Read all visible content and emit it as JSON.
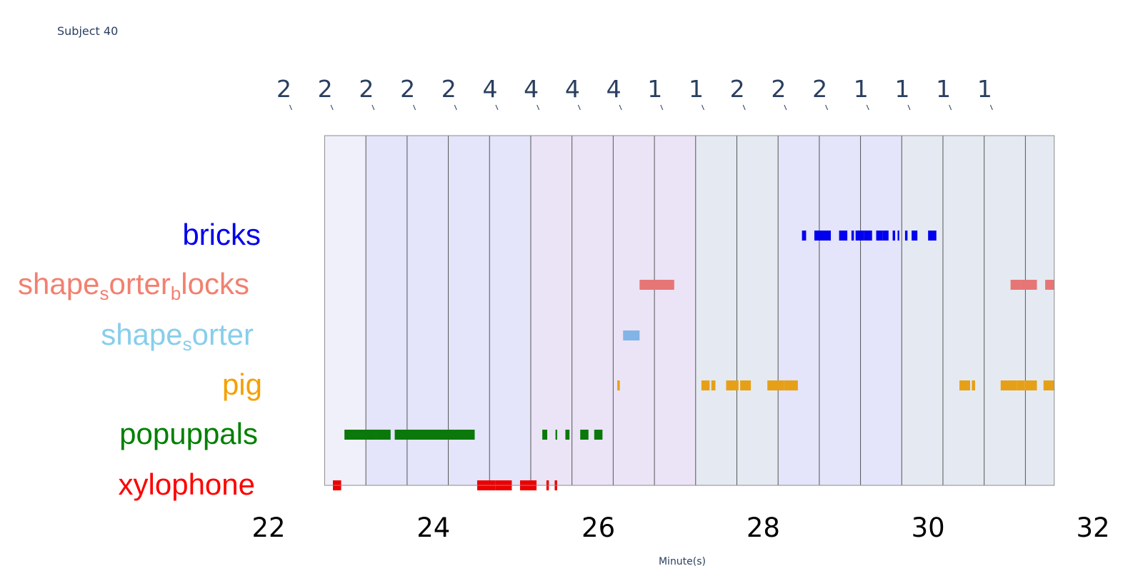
{
  "title": "Subject 40",
  "chart_data": {
    "type": "timeline",
    "title": "Subject 40",
    "xlabel": "Minute(s)",
    "xlim": [
      22,
      32
    ],
    "x_ticks": [
      "22",
      "24",
      "26",
      "28",
      "30",
      "32"
    ],
    "grid": false,
    "categories": [
      {
        "name": "bricks",
        "parts": [
          {
            "t": "bricks"
          }
        ],
        "color": "#0000ee"
      },
      {
        "name": "shape_sorter_blocks",
        "parts": [
          {
            "t": "shape"
          },
          {
            "t": "s",
            "sub": true
          },
          {
            "t": "orter"
          },
          {
            "t": "b",
            "sub": true
          },
          {
            "t": "locks"
          }
        ],
        "color": "#f28070"
      },
      {
        "name": "shape_sorter",
        "parts": [
          {
            "t": "shape"
          },
          {
            "t": "s",
            "sub": true
          },
          {
            "t": "orter"
          }
        ],
        "color": "#87ceeb"
      },
      {
        "name": "pig",
        "parts": [
          {
            "t": "pig"
          }
        ],
        "color": "#f5a000"
      },
      {
        "name": "popuppals",
        "parts": [
          {
            "t": "popuppals"
          }
        ],
        "color": "#008000"
      },
      {
        "name": "xylophone",
        "parts": [
          {
            "t": "xylophone"
          }
        ],
        "color": "#ff0000"
      }
    ],
    "bands": [
      {
        "start": 22.68,
        "end": 23.18,
        "label": "2",
        "color": "#f0f0fb"
      },
      {
        "start": 23.18,
        "end": 23.68,
        "label": "2",
        "color": "#e4e4fa"
      },
      {
        "start": 23.68,
        "end": 24.18,
        "label": "2",
        "color": "#e4e4fa"
      },
      {
        "start": 24.18,
        "end": 24.68,
        "label": "2",
        "color": "#e4e4fa"
      },
      {
        "start": 24.68,
        "end": 25.18,
        "label": "2",
        "color": "#e4e4fa"
      },
      {
        "start": 25.18,
        "end": 25.68,
        "label": "4",
        "color": "#ebe4f6"
      },
      {
        "start": 25.68,
        "end": 26.18,
        "label": "4",
        "color": "#ebe4f6"
      },
      {
        "start": 26.18,
        "end": 26.68,
        "label": "4",
        "color": "#ebe4f6"
      },
      {
        "start": 26.68,
        "end": 27.18,
        "label": "4",
        "color": "#ebe4f6"
      },
      {
        "start": 27.18,
        "end": 27.68,
        "label": "1",
        "color": "#e5eaf2"
      },
      {
        "start": 27.68,
        "end": 28.18,
        "label": "1",
        "color": "#e5eaf2"
      },
      {
        "start": 28.18,
        "end": 28.68,
        "label": "2",
        "color": "#e4e4fa"
      },
      {
        "start": 28.68,
        "end": 29.18,
        "label": "2",
        "color": "#e4e4fa"
      },
      {
        "start": 29.18,
        "end": 29.68,
        "label": "2",
        "color": "#e4e4fa"
      },
      {
        "start": 29.68,
        "end": 30.18,
        "label": "1",
        "color": "#e5eaf2"
      },
      {
        "start": 30.18,
        "end": 30.68,
        "label": "1",
        "color": "#e5eaf2"
      },
      {
        "start": 30.68,
        "end": 31.18,
        "label": "1",
        "color": "#e5eaf2"
      },
      {
        "start": 31.18,
        "end": 31.53,
        "label": "1",
        "color": "#e5eaf2"
      }
    ],
    "events": [
      {
        "cat": "bricks",
        "color": "#0000ee",
        "segments": [
          [
            28.47,
            28.52
          ],
          [
            28.62,
            28.72
          ],
          [
            28.72,
            28.82
          ],
          [
            28.92,
            29.02
          ],
          [
            29.07,
            29.1
          ],
          [
            29.12,
            29.22
          ],
          [
            29.22,
            29.32
          ],
          [
            29.37,
            29.45
          ],
          [
            29.45,
            29.52
          ],
          [
            29.57,
            29.6
          ],
          [
            29.63,
            29.65
          ],
          [
            29.72,
            29.75
          ],
          [
            29.8,
            29.87
          ],
          [
            30.0,
            30.1
          ]
        ]
      },
      {
        "cat": "shape_sorter_blocks",
        "color": "#e67676",
        "segments": [
          [
            26.5,
            26.92
          ],
          [
            31.0,
            31.12
          ],
          [
            31.12,
            31.32
          ],
          [
            31.42,
            31.53
          ]
        ]
      },
      {
        "cat": "shape_sorter",
        "color": "#82b4e6",
        "segments": [
          [
            26.3,
            26.5
          ]
        ]
      },
      {
        "cat": "pig",
        "color": "#e6a018",
        "segments": [
          [
            26.23,
            26.26
          ],
          [
            27.25,
            27.35
          ],
          [
            27.37,
            27.42
          ],
          [
            27.55,
            27.7
          ],
          [
            27.72,
            27.85
          ],
          [
            28.05,
            28.25
          ],
          [
            28.25,
            28.42
          ],
          [
            30.38,
            30.51
          ],
          [
            30.53,
            30.57
          ],
          [
            30.88,
            31.08
          ],
          [
            31.08,
            31.17
          ],
          [
            31.17,
            31.32
          ],
          [
            31.4,
            31.53
          ]
        ]
      },
      {
        "cat": "popuppals",
        "color": "#0a780a",
        "segments": [
          [
            22.92,
            23.3
          ],
          [
            23.3,
            23.48
          ],
          [
            23.53,
            23.85
          ],
          [
            23.85,
            24.18
          ],
          [
            24.18,
            24.5
          ],
          [
            25.32,
            25.38
          ],
          [
            25.48,
            25.5
          ],
          [
            25.6,
            25.65
          ],
          [
            25.78,
            25.88
          ],
          [
            25.95,
            26.05
          ]
        ]
      },
      {
        "cat": "xylophone",
        "color": "#ee0000",
        "segments": [
          [
            22.78,
            22.88
          ],
          [
            24.53,
            24.63
          ],
          [
            24.63,
            24.75
          ],
          [
            24.75,
            24.95
          ],
          [
            25.05,
            25.25
          ],
          [
            25.37,
            25.4
          ],
          [
            25.47,
            25.5
          ]
        ]
      }
    ]
  }
}
